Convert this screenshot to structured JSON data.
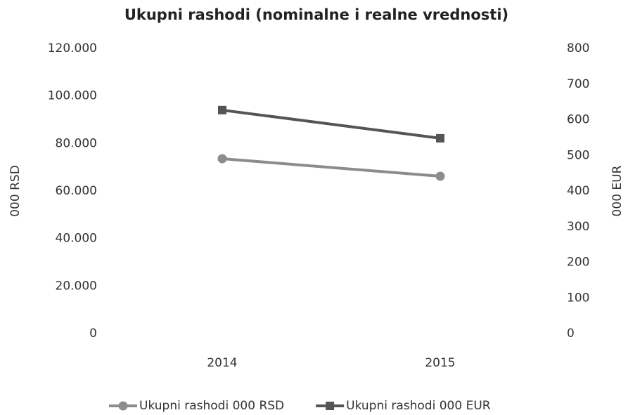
{
  "chart_data": {
    "type": "line",
    "title": "Ukupni rashodi (nominalne i realne vrednosti)",
    "ylabel": "000 RSD",
    "y2label": "000 EUR",
    "categories": [
      "2014",
      "2015"
    ],
    "series": [
      {
        "name": "Ukupni rashodi 000 RSD",
        "color": "#8c8c8c",
        "marker": "circle",
        "values": [
          73600,
          66200
        ]
      },
      {
        "name": "Ukupni rashodi 000 EUR",
        "color": "#555555",
        "marker": "square",
        "axis": "y2",
        "values": [
          627,
          548
        ]
      }
    ],
    "ylim": [
      0,
      120000
    ],
    "yticks": [
      0,
      {
        "value": 20000,
        "label": "20.000"
      },
      {
        "value": 40000,
        "label": "40.000"
      },
      {
        "value": 60000,
        "label": "60.000"
      },
      {
        "value": 80000,
        "label": "80.000"
      },
      {
        "value": 100000,
        "label": "100.000"
      },
      {
        "value": 120000,
        "label": "120.000"
      }
    ],
    "y2lim": [
      0,
      800
    ],
    "y2ticks": [
      0,
      100,
      200,
      300,
      400,
      500,
      600,
      700,
      800
    ],
    "grid": false,
    "legend": "bottom"
  }
}
